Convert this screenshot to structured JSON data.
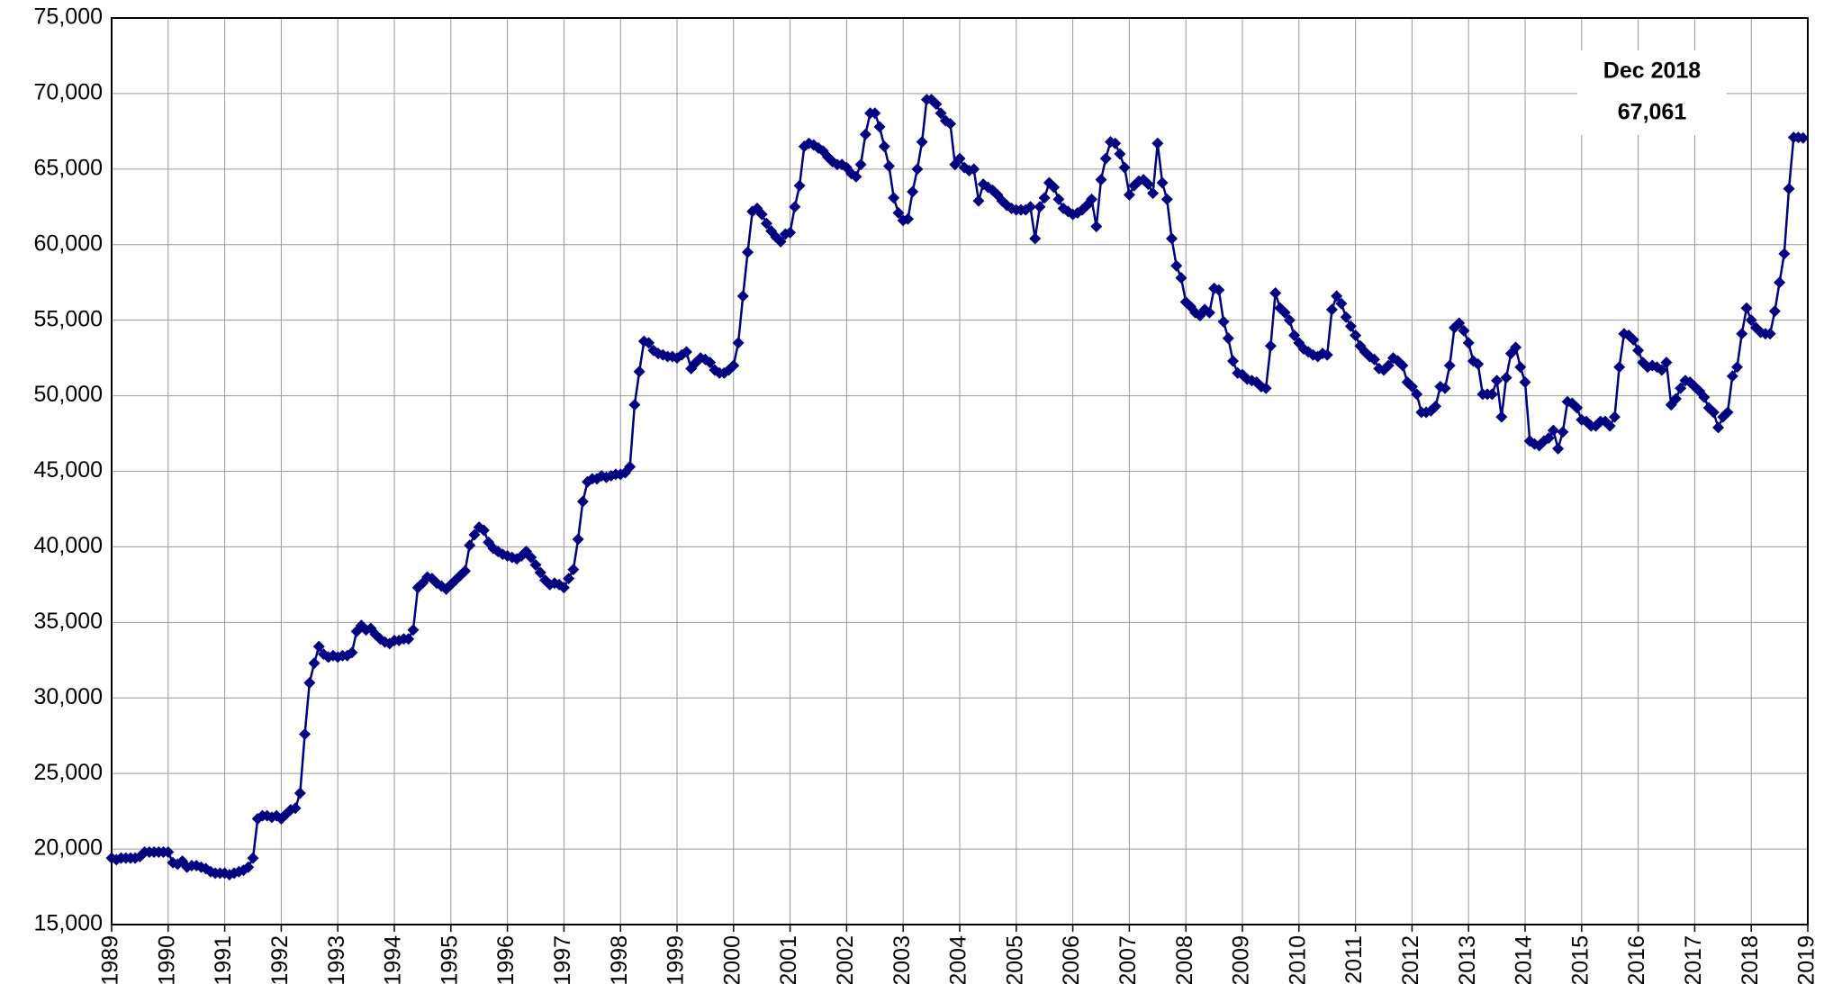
{
  "chart_data": {
    "type": "line",
    "color": "#000080",
    "grid": true,
    "annotation": [
      "Dec 2018",
      "67,061"
    ],
    "xlim": [
      1989,
      2019
    ],
    "xticks": [
      1989,
      1990,
      1991,
      1992,
      1993,
      1994,
      1995,
      1996,
      1997,
      1998,
      1999,
      2000,
      2001,
      2002,
      2003,
      2004,
      2005,
      2006,
      2007,
      2008,
      2009,
      2010,
      2011,
      2012,
      2013,
      2014,
      2015,
      2016,
      2017,
      2018,
      2019
    ],
    "ylim": [
      15000,
      75000
    ],
    "yticks": [
      {
        "value": 15000,
        "label": "15,000"
      },
      {
        "value": 20000,
        "label": "20,000"
      },
      {
        "value": 25000,
        "label": "25,000"
      },
      {
        "value": 30000,
        "label": "30,000"
      },
      {
        "value": 35000,
        "label": "35,000"
      },
      {
        "value": 40000,
        "label": "40,000"
      },
      {
        "value": 45000,
        "label": "45,000"
      },
      {
        "value": 50000,
        "label": "50,000"
      },
      {
        "value": 55000,
        "label": "55,000"
      },
      {
        "value": 60000,
        "label": "60,000"
      },
      {
        "value": 65000,
        "label": "65,000"
      },
      {
        "value": 70000,
        "label": "70,000"
      },
      {
        "value": 75000,
        "label": "75,000"
      }
    ],
    "x": [
      "1989-01",
      "1989-02",
      "1989-03",
      "1989-04",
      "1989-05",
      "1989-06",
      "1989-07",
      "1989-08",
      "1989-09",
      "1989-10",
      "1989-11",
      "1989-12",
      "1990-01",
      "1990-02",
      "1990-03",
      "1990-04",
      "1990-05",
      "1990-06",
      "1990-07",
      "1990-08",
      "1990-09",
      "1990-10",
      "1990-11",
      "1990-12",
      "1991-01",
      "1991-02",
      "1991-03",
      "1991-04",
      "1991-05",
      "1991-06",
      "1991-07",
      "1991-08",
      "1991-09",
      "1991-10",
      "1991-11",
      "1991-12",
      "1992-01",
      "1992-02",
      "1992-03",
      "1992-04",
      "1992-05",
      "1992-06",
      "1992-07",
      "1992-08",
      "1992-09",
      "1992-10",
      "1992-11",
      "1992-12",
      "1993-01",
      "1993-02",
      "1993-03",
      "1993-04",
      "1993-05",
      "1993-06",
      "1993-07",
      "1993-08",
      "1993-09",
      "1993-10",
      "1993-11",
      "1993-12",
      "1994-01",
      "1994-02",
      "1994-03",
      "1994-04",
      "1994-05",
      "1994-06",
      "1994-07",
      "1994-08",
      "1994-09",
      "1994-10",
      "1994-11",
      "1994-12",
      "1995-01",
      "1995-02",
      "1995-03",
      "1995-04",
      "1995-05",
      "1995-06",
      "1995-07",
      "1995-08",
      "1995-09",
      "1995-10",
      "1995-11",
      "1995-12",
      "1996-01",
      "1996-02",
      "1996-03",
      "1996-04",
      "1996-05",
      "1996-06",
      "1996-07",
      "1996-08",
      "1996-09",
      "1996-10",
      "1996-11",
      "1996-12",
      "1997-01",
      "1997-02",
      "1997-03",
      "1997-04",
      "1997-05",
      "1997-06",
      "1997-07",
      "1997-08",
      "1997-09",
      "1997-10",
      "1997-11",
      "1997-12",
      "1998-01",
      "1998-02",
      "1998-03",
      "1998-04",
      "1998-05",
      "1998-06",
      "1998-07",
      "1998-08",
      "1998-09",
      "1998-10",
      "1998-11",
      "1998-12",
      "1999-01",
      "1999-02",
      "1999-03",
      "1999-04",
      "1999-05",
      "1999-06",
      "1999-07",
      "1999-08",
      "1999-09",
      "1999-10",
      "1999-11",
      "1999-12",
      "2000-01",
      "2000-02",
      "2000-03",
      "2000-04",
      "2000-05",
      "2000-06",
      "2000-07",
      "2000-08",
      "2000-09",
      "2000-10",
      "2000-11",
      "2000-12",
      "2001-01",
      "2001-02",
      "2001-03",
      "2001-04",
      "2001-05",
      "2001-06",
      "2001-07",
      "2001-08",
      "2001-09",
      "2001-10",
      "2001-11",
      "2001-12",
      "2002-01",
      "2002-02",
      "2002-03",
      "2002-04",
      "2002-05",
      "2002-06",
      "2002-07",
      "2002-08",
      "2002-09",
      "2002-10",
      "2002-11",
      "2002-12",
      "2003-01",
      "2003-02",
      "2003-03",
      "2003-04",
      "2003-05",
      "2003-06",
      "2003-07",
      "2003-08",
      "2003-09",
      "2003-10",
      "2003-11",
      "2003-12",
      "2004-01",
      "2004-02",
      "2004-03",
      "2004-04",
      "2004-05",
      "2004-06",
      "2004-07",
      "2004-08",
      "2004-09",
      "2004-10",
      "2004-11",
      "2004-12",
      "2005-01",
      "2005-02",
      "2005-03",
      "2005-04",
      "2005-05",
      "2005-06",
      "2005-07",
      "2005-08",
      "2005-09",
      "2005-10",
      "2005-11",
      "2005-12",
      "2006-01",
      "2006-02",
      "2006-03",
      "2006-04",
      "2006-05",
      "2006-06",
      "2006-07",
      "2006-08",
      "2006-09",
      "2006-10",
      "2006-11",
      "2006-12",
      "2007-01",
      "2007-02",
      "2007-03",
      "2007-04",
      "2007-05",
      "2007-06",
      "2007-07",
      "2007-08",
      "2007-09",
      "2007-10",
      "2007-11",
      "2007-12",
      "2008-01",
      "2008-02",
      "2008-03",
      "2008-04",
      "2008-05",
      "2008-06",
      "2008-07",
      "2008-08",
      "2008-09",
      "2008-10",
      "2008-11",
      "2008-12",
      "2009-01",
      "2009-02",
      "2009-03",
      "2009-04",
      "2009-05",
      "2009-06",
      "2009-07",
      "2009-08",
      "2009-09",
      "2009-10",
      "2009-11",
      "2009-12",
      "2010-01",
      "2010-02",
      "2010-03",
      "2010-04",
      "2010-05",
      "2010-06",
      "2010-07",
      "2010-08",
      "2010-09",
      "2010-10",
      "2010-11",
      "2010-12",
      "2011-01",
      "2011-02",
      "2011-03",
      "2011-04",
      "2011-05",
      "2011-06",
      "2011-07",
      "2011-08",
      "2011-09",
      "2011-10",
      "2011-11",
      "2011-12",
      "2012-01",
      "2012-02",
      "2012-03",
      "2012-04",
      "2012-05",
      "2012-06",
      "2012-07",
      "2012-08",
      "2012-09",
      "2012-10",
      "2012-11",
      "2012-12",
      "2013-01",
      "2013-02",
      "2013-03",
      "2013-04",
      "2013-05",
      "2013-06",
      "2013-07",
      "2013-08",
      "2013-09",
      "2013-10",
      "2013-11",
      "2013-12",
      "2014-01",
      "2014-02",
      "2014-03",
      "2014-04",
      "2014-05",
      "2014-06",
      "2014-07",
      "2014-08",
      "2014-09",
      "2014-10",
      "2014-11",
      "2014-12",
      "2015-01",
      "2015-02",
      "2015-03",
      "2015-04",
      "2015-05",
      "2015-06",
      "2015-07",
      "2015-08",
      "2015-09",
      "2015-10",
      "2015-11",
      "2015-12",
      "2016-01",
      "2016-02",
      "2016-03",
      "2016-04",
      "2016-05",
      "2016-06",
      "2016-07",
      "2016-08",
      "2016-09",
      "2016-10",
      "2016-11",
      "2016-12",
      "2017-01",
      "2017-02",
      "2017-03",
      "2017-04",
      "2017-05",
      "2017-06",
      "2017-07",
      "2017-08",
      "2017-09",
      "2017-10",
      "2017-11",
      "2017-12",
      "2018-01",
      "2018-02",
      "2018-03",
      "2018-04",
      "2018-05",
      "2018-06",
      "2018-07",
      "2018-08",
      "2018-09",
      "2018-10",
      "2018-11",
      "2018-12"
    ],
    "values": [
      19400,
      19300,
      19400,
      19400,
      19400,
      19400,
      19500,
      19800,
      19800,
      19800,
      19800,
      19800,
      19800,
      19100,
      19000,
      19200,
      18800,
      18900,
      18900,
      18800,
      18700,
      18500,
      18400,
      18400,
      18400,
      18300,
      18400,
      18500,
      18600,
      18800,
      19400,
      22000,
      22200,
      22200,
      22100,
      22200,
      22000,
      22300,
      22600,
      22700,
      23700,
      27600,
      31000,
      32300,
      33400,
      32900,
      32700,
      32800,
      32700,
      32800,
      32800,
      33000,
      34400,
      34800,
      34500,
      34600,
      34200,
      33900,
      33700,
      33600,
      33800,
      33800,
      33900,
      33900,
      34500,
      37300,
      37600,
      38000,
      37900,
      37600,
      37400,
      37200,
      37500,
      37800,
      38100,
      38400,
      40100,
      40800,
      41300,
      41100,
      40300,
      39900,
      39700,
      39500,
      39400,
      39300,
      39200,
      39400,
      39700,
      39300,
      38800,
      38300,
      37800,
      37500,
      37600,
      37500,
      37300,
      37900,
      38500,
      40500,
      43000,
      44300,
      44500,
      44500,
      44700,
      44600,
      44700,
      44800,
      44800,
      44900,
      45300,
      49400,
      51600,
      53600,
      53500,
      53000,
      52800,
      52700,
      52600,
      52600,
      52500,
      52700,
      52900,
      51800,
      52200,
      52500,
      52400,
      52200,
      51700,
      51500,
      51500,
      51700,
      52000,
      53500,
      56600,
      59500,
      62200,
      62400,
      62000,
      61400,
      60900,
      60500,
      60200,
      60700,
      60800,
      62500,
      63900,
      66500,
      66700,
      66600,
      66400,
      66200,
      65800,
      65500,
      65300,
      65300,
      65100,
      64700,
      64500,
      65300,
      67300,
      68700,
      68700,
      67800,
      66500,
      65200,
      63100,
      62100,
      61600,
      61700,
      63500,
      65000,
      66800,
      69600,
      69600,
      69300,
      68700,
      68200,
      68000,
      65300,
      65700,
      65100,
      64900,
      65000,
      62900,
      64000,
      63800,
      63600,
      63300,
      62900,
      62600,
      62400,
      62300,
      62300,
      62300,
      62500,
      60400,
      62500,
      63100,
      64100,
      63800,
      63000,
      62400,
      62200,
      62000,
      62100,
      62300,
      62600,
      63000,
      61200,
      64300,
      65700,
      66800,
      66700,
      66000,
      65100,
      63300,
      63900,
      64200,
      64300,
      64000,
      63400,
      66700,
      64100,
      63000,
      60400,
      58600,
      57800,
      56200,
      55900,
      55500,
      55300,
      55700,
      55500,
      57100,
      57000,
      54900,
      53800,
      52300,
      51500,
      51400,
      51100,
      51000,
      50900,
      50600,
      50500,
      53300,
      56800,
      55800,
      55500,
      55000,
      54000,
      53500,
      53100,
      52900,
      52700,
      52600,
      52800,
      52700,
      55700,
      56600,
      56100,
      55200,
      54600,
      54000,
      53300,
      52900,
      52600,
      52400,
      51800,
      51700,
      52000,
      52500,
      52300,
      52000,
      50900,
      50600,
      50100,
      48900,
      48900,
      49000,
      49300,
      50600,
      50500,
      52000,
      54500,
      54800,
      54300,
      53500,
      52300,
      52100,
      50100,
      50100,
      50100,
      51000,
      48600,
      51200,
      52800,
      53200,
      51900,
      50900,
      47000,
      46800,
      46700,
      47000,
      47200,
      47700,
      46500,
      47600,
      49600,
      49500,
      49200,
      48400,
      48300,
      48000,
      48000,
      48300,
      48300,
      48000,
      48600,
      51900,
      54100,
      54000,
      53700,
      53000,
      52200,
      51900,
      52000,
      51900,
      51700,
      52200,
      49400,
      49800,
      50500,
      51000,
      50900,
      50600,
      50300,
      49900,
      49200,
      48900,
      47900,
      48600,
      48900,
      51300,
      51900,
      54100,
      55800,
      55000,
      54500,
      54200,
      54100,
      54100,
      55600,
      57500,
      59400,
      63700,
      67100,
      67100,
      67061
    ]
  }
}
